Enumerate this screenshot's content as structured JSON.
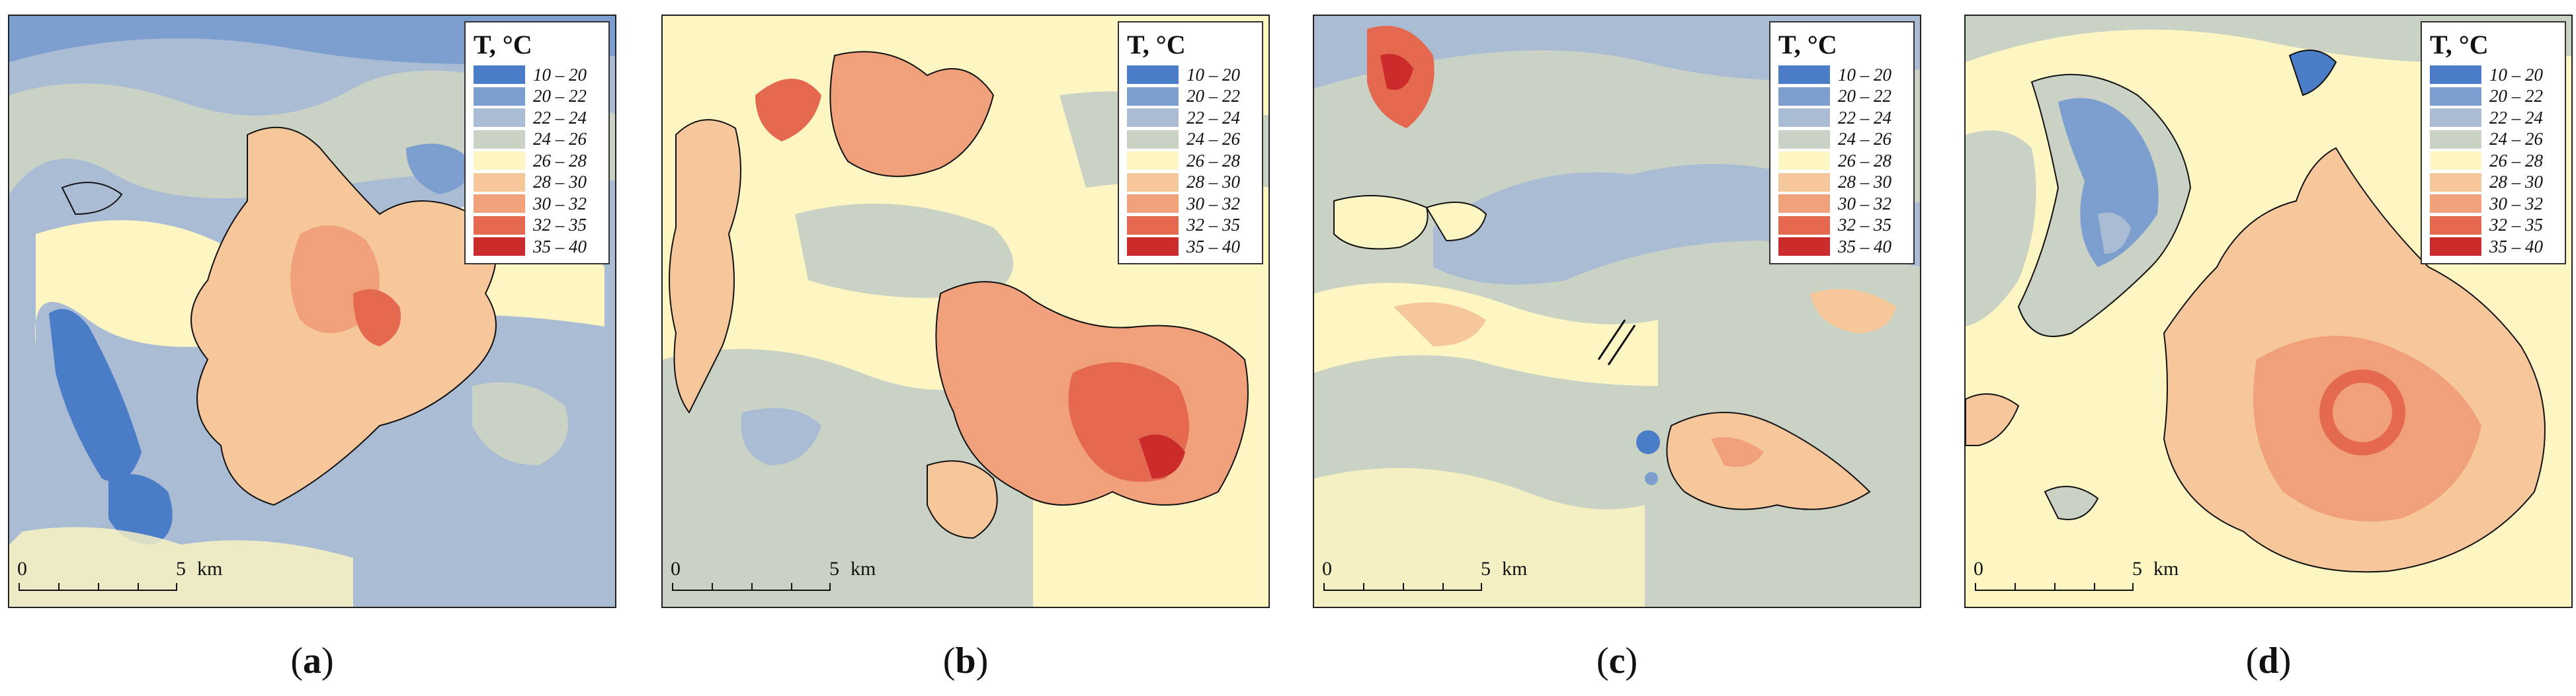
{
  "legend": {
    "title": "T, °C",
    "classes": [
      {
        "label": "10 – 20",
        "color": "#4a7cc7"
      },
      {
        "label": "20 – 22",
        "color": "#7d9fcf"
      },
      {
        "label": "22 – 24",
        "color": "#a9bcd3"
      },
      {
        "label": "24 – 26",
        "color": "#c9d2c4"
      },
      {
        "label": "26 – 28",
        "color": "#fdf6c3"
      },
      {
        "label": "28 – 30",
        "color": "#f6c79a"
      },
      {
        "label": "30 – 32",
        "color": "#f0a07a"
      },
      {
        "label": "32 – 35",
        "color": "#e4694f"
      },
      {
        "label": "35 – 40",
        "color": "#cc2b2b"
      }
    ]
  },
  "scale_bar": {
    "zero": "0",
    "five": "5",
    "unit": "km"
  },
  "panels": [
    {
      "caption_open": "(",
      "caption_letter": "a",
      "caption_close": ")",
      "background_class": "22 – 24"
    },
    {
      "caption_open": "(",
      "caption_letter": "b",
      "caption_close": ")",
      "background_class": "26 – 28"
    },
    {
      "caption_open": "(",
      "caption_letter": "c",
      "caption_close": ")",
      "background_class": "24 – 26"
    },
    {
      "caption_open": "(",
      "caption_letter": "d",
      "caption_close": ")",
      "background_class": "26 – 28"
    }
  ]
}
